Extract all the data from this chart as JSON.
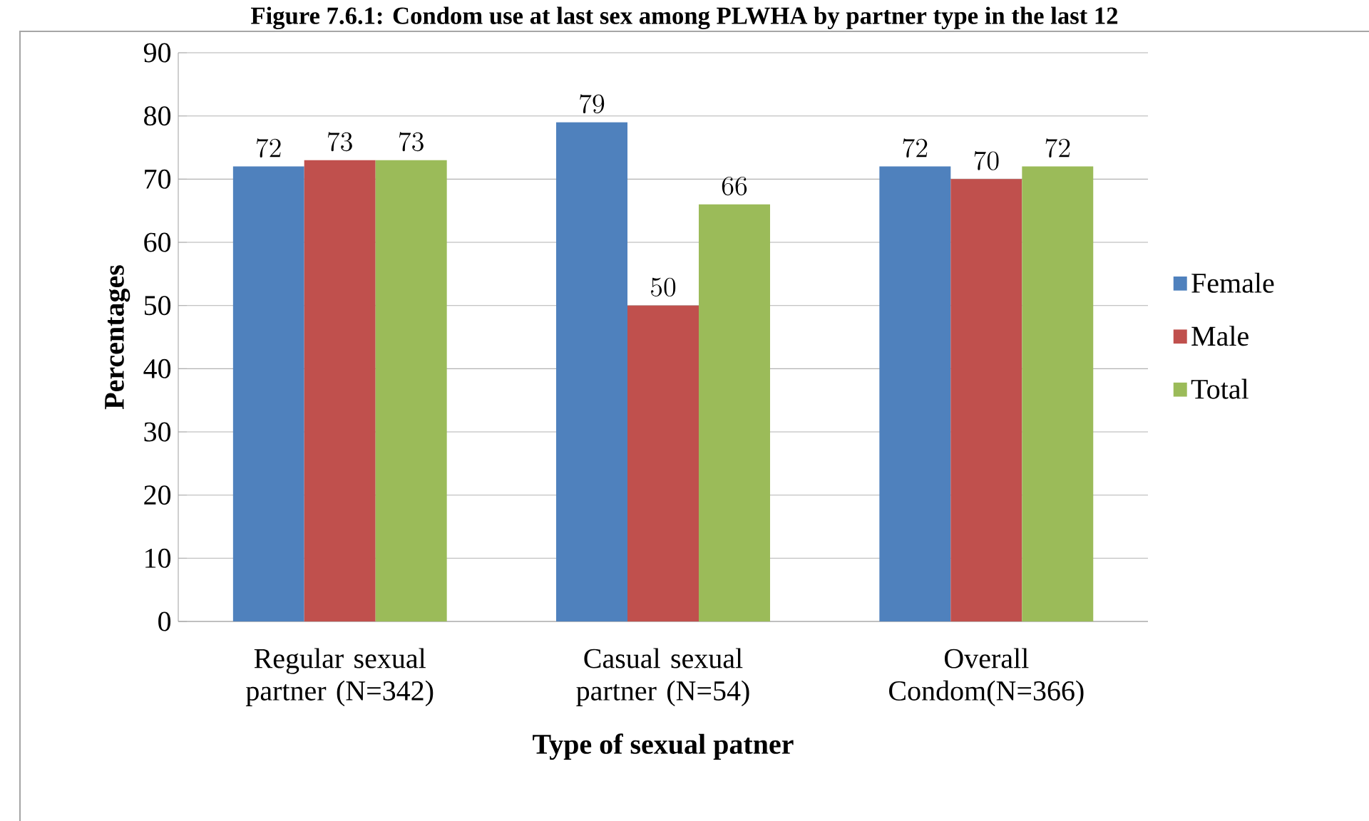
{
  "chart_data": {
    "type": "bar",
    "title": "Figure 7.6.1: Condom use at last sex among PLWHA by partner type in the last 12",
    "xlabel": "Type of sexual patner",
    "ylabel": "Percentages",
    "categories": [
      "Regular sexual partner (N=342)",
      "Casual sexual partner (N=54)",
      "Overall Condom(N=366)"
    ],
    "series": [
      {
        "name": "Female",
        "color": "#4f81bd",
        "values": [
          72,
          79,
          72
        ]
      },
      {
        "name": "Male",
        "color": "#c0504d",
        "values": [
          73,
          50,
          70
        ]
      },
      {
        "name": "Total",
        "color": "#9bbb59",
        "values": [
          73,
          66,
          72
        ]
      }
    ],
    "ylim": [
      0,
      90
    ],
    "yticks": [
      0,
      10,
      20,
      30,
      40,
      50,
      60,
      70,
      80,
      90
    ],
    "grid": "y",
    "legend": "right",
    "data_labels": true
  }
}
